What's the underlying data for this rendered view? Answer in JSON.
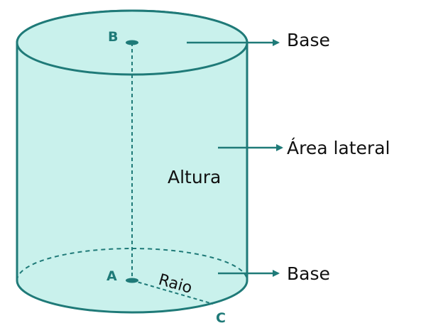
{
  "labels": {
    "top_base": "Base",
    "lateral_area": "Área lateral",
    "height": "Altura",
    "bottom_base": "Base",
    "radius": "Raio"
  },
  "points": {
    "top_center": "B",
    "bottom_center": "A",
    "edge": "C"
  },
  "colors": {
    "fill": "#c9f1ec",
    "stroke": "#1f7a78",
    "text": "#111111"
  }
}
